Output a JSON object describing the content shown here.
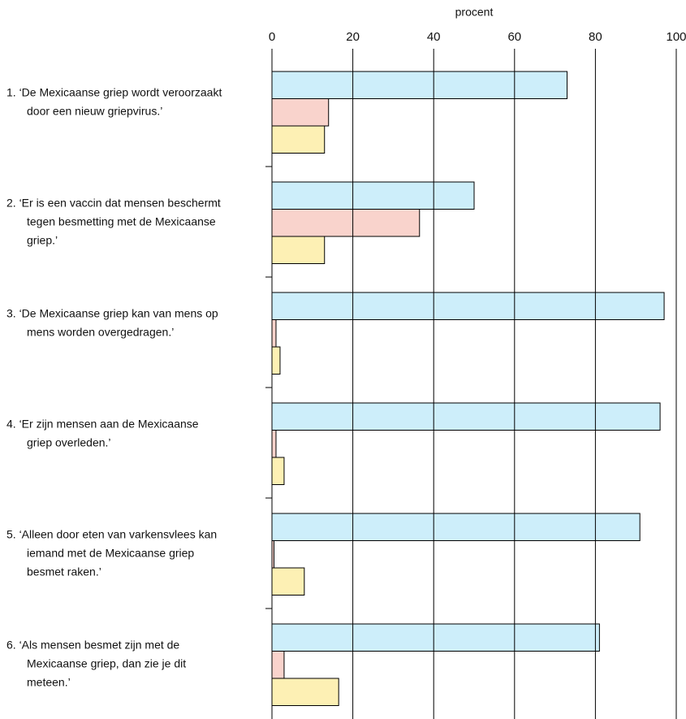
{
  "chart_data": {
    "type": "bar",
    "orientation": "horizontal",
    "x_axis_label": "procent",
    "categories": [
      [
        "1. ‘De Mexicaanse griep wordt veroorzaakt",
        "door een nieuw griepvirus.’"
      ],
      [
        "2. ‘Er is een vaccin dat mensen beschermt",
        "tegen besmetting met de Mexicaanse",
        "griep.’"
      ],
      [
        "3. ‘De Mexicaanse griep kan van mens op",
        "mens worden overgedragen.’"
      ],
      [
        "4. ‘Er zijn mensen aan de Mexicaanse",
        "griep overleden.’"
      ],
      [
        "5. ‘Alleen door eten van varkensvlees kan",
        "iemand met de Mexicaanse griep",
        "besmet raken.’"
      ],
      [
        "6. ‘Als mensen besmet zijn met de",
        "Mexicaanse griep, dan zie je dit",
        "meteen.’"
      ]
    ],
    "series": [
      {
        "color": "#cdeefa",
        "values": [
          73,
          50,
          97,
          96,
          91,
          81
        ]
      },
      {
        "color": "#f9d3cc",
        "values": [
          14,
          36.5,
          1,
          1,
          0.5,
          3
        ]
      },
      {
        "color": "#fdf0b4",
        "values": [
          13,
          13,
          2,
          3,
          8,
          16.5
        ]
      }
    ],
    "xlim": [
      0,
      100
    ],
    "xticks": [
      0,
      20,
      40,
      60,
      80,
      100
    ],
    "grid": true
  }
}
